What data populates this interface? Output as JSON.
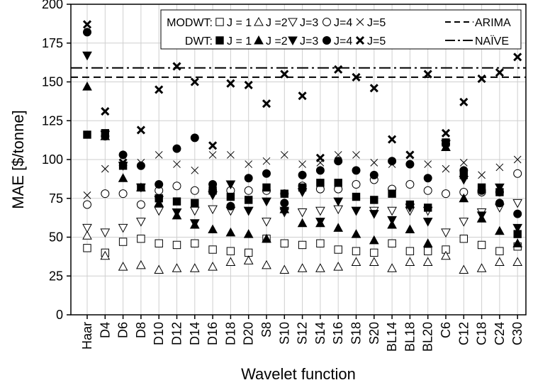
{
  "chart_data": {
    "type": "scatter",
    "xlabel": "Wavelet function",
    "ylabel": "MAE [$/tonne]",
    "ylim": [
      0,
      200
    ],
    "yticks": [
      0,
      25,
      50,
      75,
      100,
      125,
      150,
      175,
      200
    ],
    "grid": true,
    "legend_position": "top-right",
    "categories": [
      "Haar",
      "D4",
      "D6",
      "D8",
      "D10",
      "D12",
      "D14",
      "D16",
      "D18",
      "D20",
      "S8",
      "S10",
      "S12",
      "S14",
      "S16",
      "S18",
      "S20",
      "BL14",
      "BL18",
      "BL20",
      "C6",
      "C12",
      "C18",
      "C24",
      "C30"
    ],
    "legend": {
      "modwt_prefix": "MODWT:",
      "dwt_prefix": "DWT:",
      "labels": [
        "J = 1",
        "J =2",
        "J=3",
        "J=4",
        "J=5"
      ],
      "arima": "ARIMA",
      "naive": "NAÏVE"
    },
    "reference_lines": [
      {
        "name": "ARIMA",
        "value": 153,
        "style": "dashed"
      },
      {
        "name": "NAÏVE",
        "value": 159,
        "style": "dashdot"
      }
    ],
    "series": [
      {
        "method": "MODWT",
        "level": 1,
        "marker": "square-open",
        "values": [
          43,
          40,
          47,
          49,
          46,
          45,
          46,
          42,
          41,
          40,
          49,
          46,
          45,
          46,
          42,
          41,
          40,
          46,
          41,
          41,
          42,
          49,
          45,
          41,
          44
        ]
      },
      {
        "method": "MODWT",
        "level": 2,
        "marker": "triangle-up-open",
        "values": [
          51,
          38,
          31,
          32,
          29,
          30,
          30,
          31,
          34,
          35,
          32,
          29,
          30,
          30,
          31,
          34,
          34,
          30,
          34,
          34,
          38,
          29,
          30,
          34,
          34
        ]
      },
      {
        "method": "MODWT",
        "level": 3,
        "marker": "triangle-down-open",
        "values": [
          56,
          53,
          56,
          60,
          67,
          66,
          67,
          68,
          67,
          67,
          60,
          66,
          66,
          67,
          68,
          67,
          67,
          67,
          67,
          67,
          53,
          60,
          66,
          69,
          72
        ]
      },
      {
        "method": "MODWT",
        "level": 4,
        "marker": "circle-open",
        "values": [
          71,
          78,
          78,
          71,
          80,
          83,
          80,
          80,
          80,
          80,
          80,
          78,
          83,
          81,
          81,
          84,
          87,
          81,
          84,
          80,
          78,
          79,
          79,
          79,
          91
        ]
      },
      {
        "method": "MODWT",
        "level": 5,
        "marker": "x",
        "values": [
          77,
          94,
          96,
          98,
          103,
          97,
          93,
          103,
          103,
          97,
          99,
          103,
          97,
          98,
          103,
          103,
          98,
          97,
          103,
          97,
          94,
          98,
          90,
          95,
          100
        ]
      },
      {
        "method": "DWT",
        "level": 1,
        "marker": "square-filled",
        "values": [
          116,
          117,
          96,
          82,
          75,
          73,
          72,
          80,
          76,
          74,
          82,
          78,
          82,
          85,
          85,
          76,
          74,
          78,
          71,
          69,
          111,
          90,
          82,
          79,
          52
        ]
      },
      {
        "method": "DWT",
        "level": 2,
        "marker": "triangle-up-filled",
        "values": [
          147,
          115,
          88,
          82,
          72,
          64,
          58,
          55,
          53,
          52,
          49,
          68,
          59,
          59,
          56,
          52,
          48,
          58,
          55,
          46,
          108,
          75,
          62,
          54,
          46
        ]
      },
      {
        "method": "DWT",
        "level": 3,
        "marker": "triangle-down-filled",
        "values": [
          167,
          116,
          96,
          82,
          74,
          66,
          59,
          77,
          84,
          67,
          73,
          67,
          79,
          60,
          73,
          67,
          65,
          61,
          69,
          60,
          110,
          87,
          64,
          82,
          56
        ]
      },
      {
        "method": "DWT",
        "level": 4,
        "marker": "circle-filled",
        "values": [
          182,
          115,
          103,
          96,
          84,
          107,
          114,
          84,
          70,
          88,
          91,
          72,
          90,
          93,
          99,
          93,
          90,
          99,
          97,
          88,
          110,
          93,
          80,
          72,
          65
        ]
      },
      {
        "method": "DWT",
        "level": 5,
        "marker": "x-bold",
        "values": [
          187,
          131,
          98,
          119,
          145,
          160,
          150,
          109,
          149,
          148,
          136,
          155,
          141,
          101,
          158,
          153,
          146,
          113,
          103,
          155,
          117,
          137,
          152,
          156,
          166
        ]
      }
    ]
  }
}
